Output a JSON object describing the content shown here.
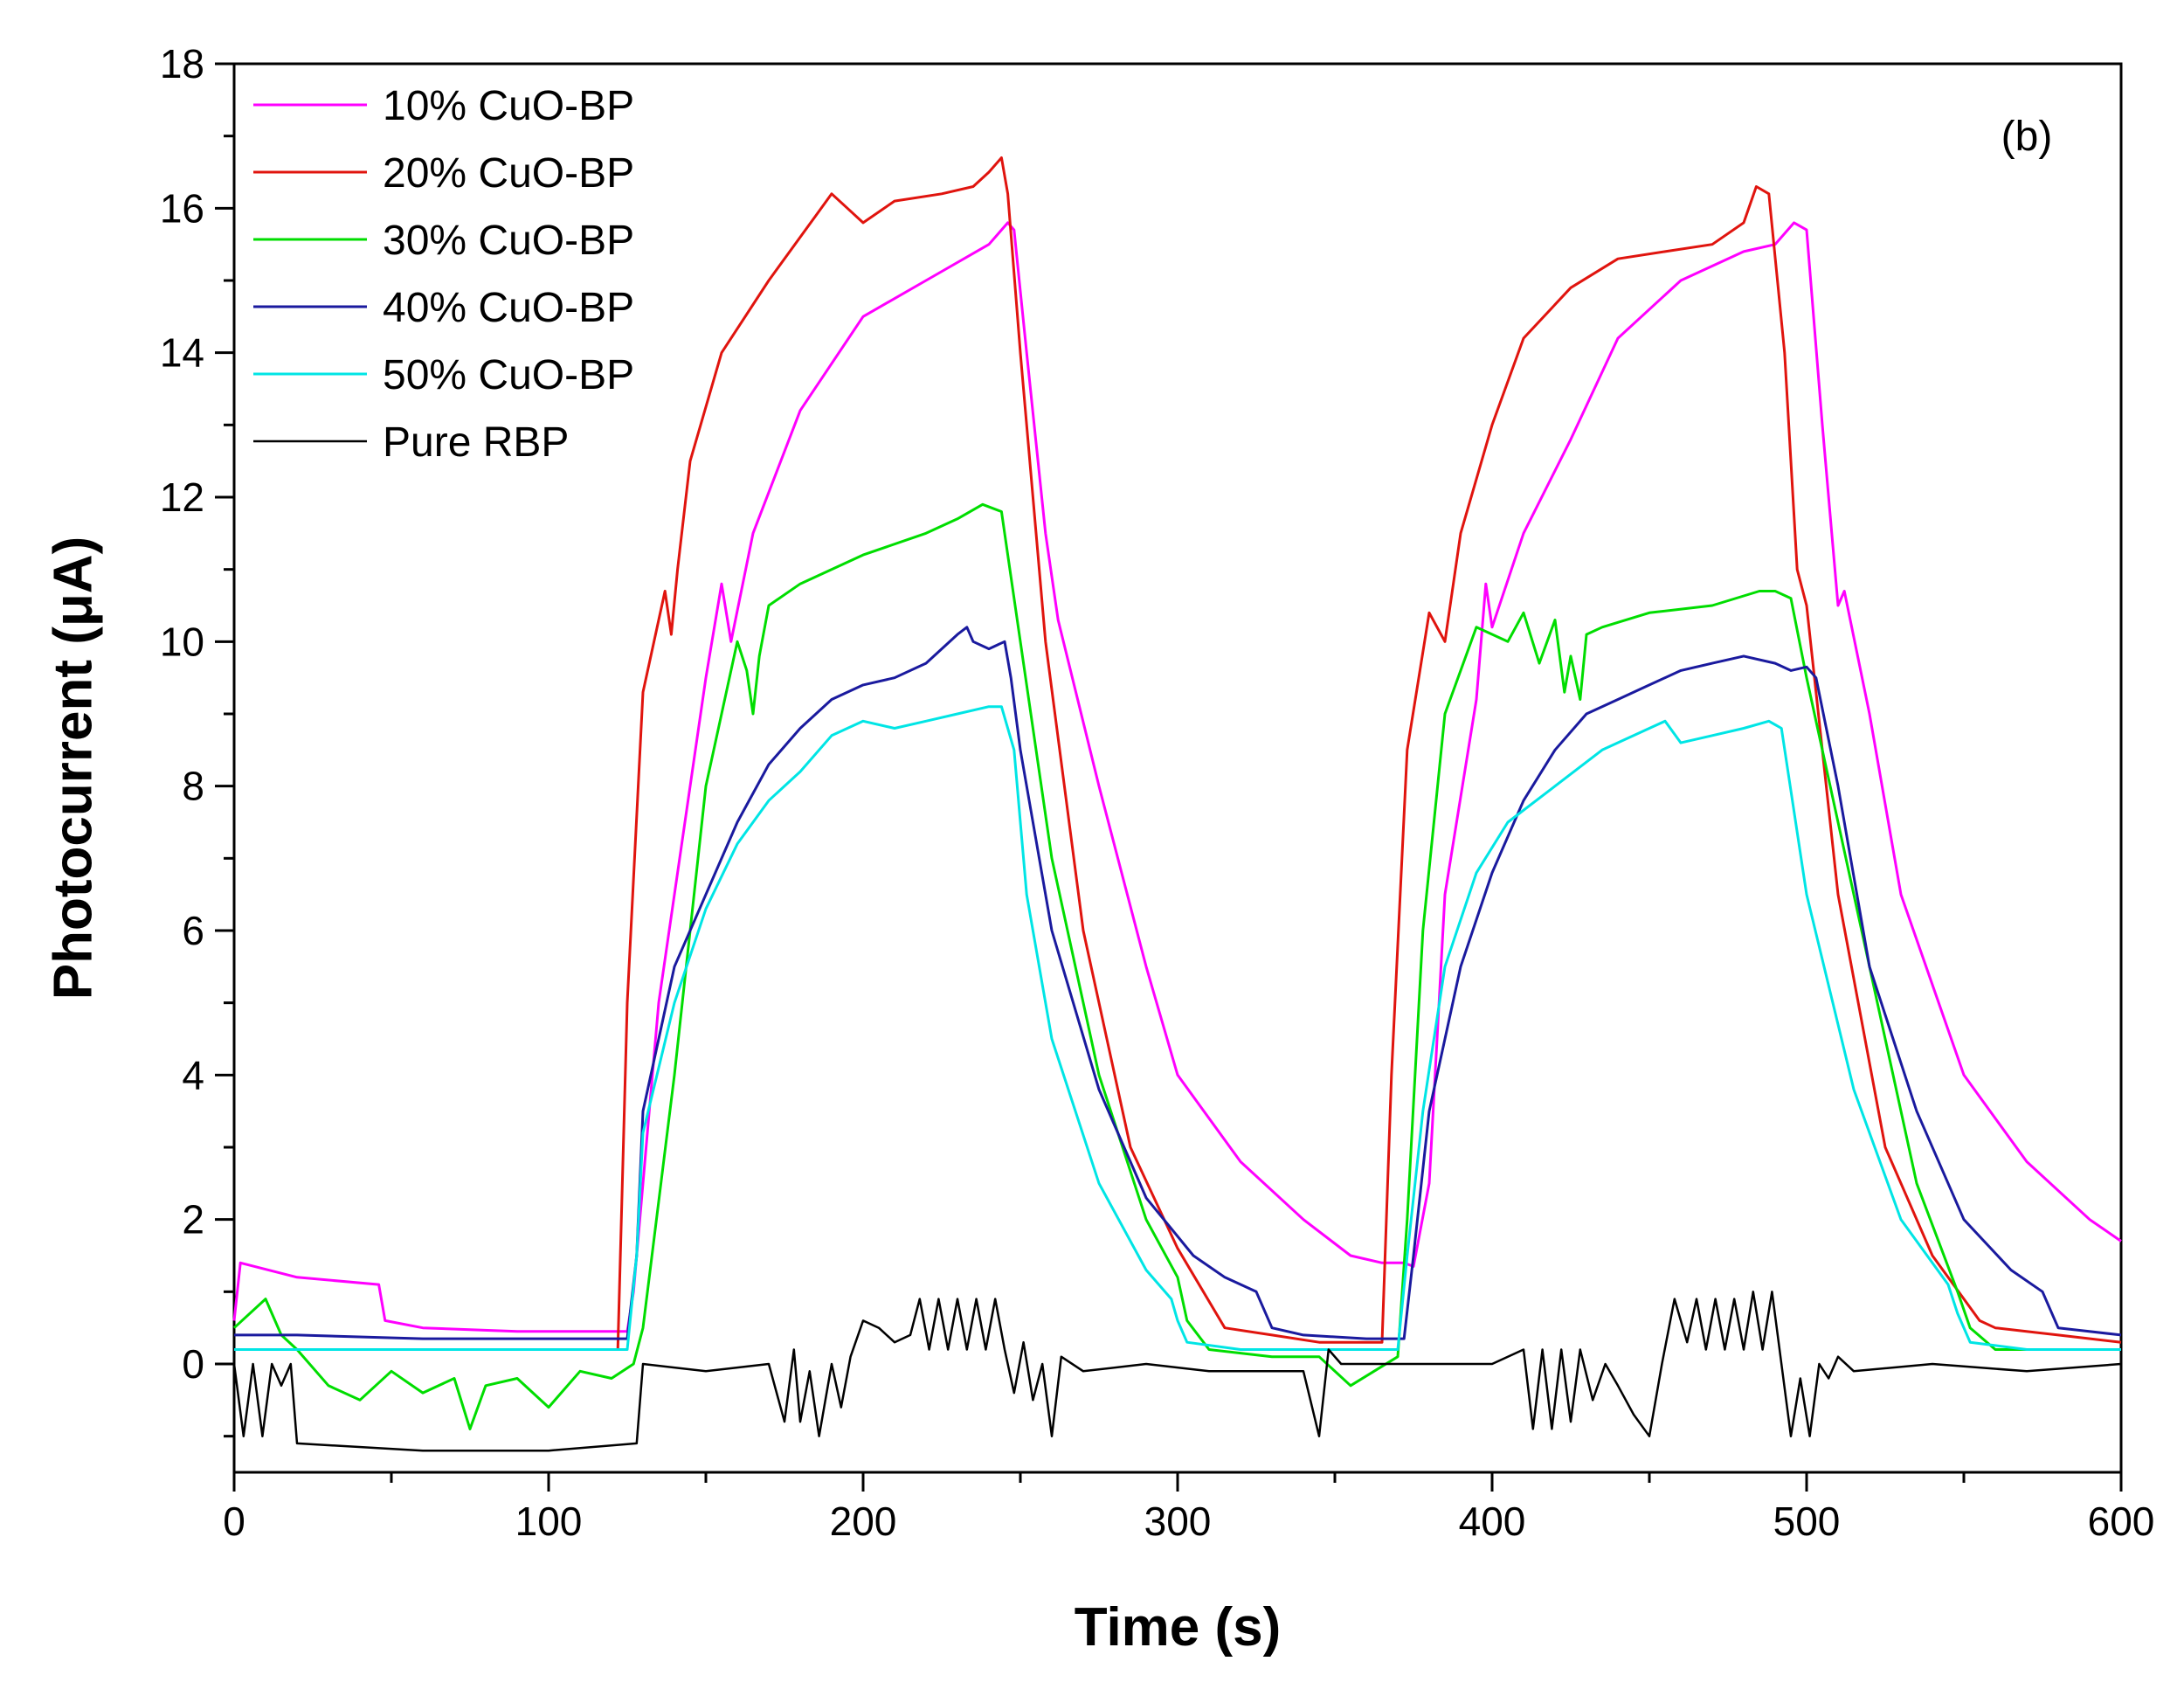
{
  "chart_data": {
    "type": "line",
    "title": "",
    "annotation": "(b)",
    "xlabel": "Time (s)",
    "ylabel": "Photocurrent (μA)",
    "xlim": [
      0,
      600
    ],
    "ylim": [
      -1.5,
      18
    ],
    "xticks": [
      0,
      100,
      200,
      300,
      400,
      500,
      600
    ],
    "yticks": [
      0,
      2,
      4,
      6,
      8,
      10,
      12,
      14,
      16,
      18
    ],
    "grid": false,
    "legend_position": "top-left",
    "series": [
      {
        "name": "10% CuO-BP",
        "color": "#ff00ff",
        "x": [
          0,
          2,
          20,
          46,
          48,
          60,
          90,
          125,
          127,
          135,
          150,
          155,
          158,
          165,
          180,
          200,
          220,
          240,
          246,
          248,
          252,
          258,
          262,
          275,
          290,
          300,
          320,
          340,
          355,
          365,
          372,
          375,
          380,
          385,
          395,
          398,
          400,
          410,
          425,
          440,
          460,
          480,
          490,
          496,
          500,
          505,
          510,
          512,
          520,
          530,
          550,
          570,
          590,
          600
        ],
        "y": [
          0.6,
          1.4,
          1.2,
          1.1,
          0.6,
          0.5,
          0.45,
          0.45,
          1.0,
          5.0,
          9.5,
          10.8,
          10.0,
          11.5,
          13.2,
          14.5,
          15.0,
          15.5,
          15.8,
          15.7,
          14.0,
          11.5,
          10.3,
          8.0,
          5.5,
          4.0,
          2.8,
          2.0,
          1.5,
          1.4,
          1.4,
          1.35,
          2.5,
          6.5,
          9.2,
          10.8,
          10.2,
          11.5,
          12.8,
          14.2,
          15.0,
          15.4,
          15.5,
          15.8,
          15.7,
          13.0,
          10.5,
          10.7,
          9.0,
          6.5,
          4.0,
          2.8,
          2.0,
          1.7
        ]
      },
      {
        "name": "20% CuO-BP",
        "color": "#e0140e",
        "x": [
          0,
          20,
          60,
          100,
          122,
          125,
          130,
          137,
          139,
          141,
          145,
          155,
          170,
          185,
          190,
          195,
          200,
          210,
          225,
          235,
          240,
          244,
          246,
          250,
          258,
          270,
          285,
          300,
          315,
          330,
          345,
          360,
          365,
          368,
          373,
          380,
          385,
          390,
          400,
          410,
          425,
          440,
          455,
          470,
          480,
          484,
          488,
          493,
          497,
          500,
          510,
          525,
          540,
          555,
          560,
          580,
          600
        ],
        "y": [
          0.2,
          0.2,
          0.2,
          0.2,
          0.2,
          5.0,
          9.3,
          10.7,
          10.1,
          11.0,
          12.5,
          14.0,
          15.0,
          15.9,
          16.2,
          16.0,
          15.8,
          16.1,
          16.2,
          16.3,
          16.5,
          16.7,
          16.2,
          14.0,
          10.0,
          6.0,
          3.0,
          1.6,
          0.5,
          0.4,
          0.3,
          0.3,
          0.3,
          4.0,
          8.5,
          10.4,
          10.0,
          11.5,
          13.0,
          14.2,
          14.9,
          15.3,
          15.4,
          15.5,
          15.8,
          16.3,
          16.2,
          14.0,
          11.0,
          10.5,
          6.5,
          3.0,
          1.5,
          0.6,
          0.5,
          0.4,
          0.3
        ]
      },
      {
        "name": "30% CuO-BP",
        "color": "#00dd00",
        "x": [
          0,
          10,
          15,
          20,
          30,
          40,
          50,
          60,
          70,
          75,
          80,
          90,
          100,
          110,
          120,
          127,
          130,
          140,
          150,
          160,
          163,
          165,
          167,
          170,
          180,
          200,
          220,
          230,
          238,
          244,
          246,
          250,
          260,
          275,
          290,
          300,
          303,
          310,
          330,
          345,
          355,
          370,
          373,
          378,
          385,
          395,
          405,
          410,
          415,
          420,
          423,
          425,
          428,
          430,
          435,
          450,
          470,
          485,
          490,
          495,
          500,
          520,
          535,
          548,
          552,
          560,
          580,
          600
        ],
        "y": [
          0.5,
          0.9,
          0.4,
          0.2,
          -0.3,
          -0.5,
          -0.1,
          -0.4,
          -0.2,
          -0.9,
          -0.3,
          -0.2,
          -0.6,
          -0.1,
          -0.2,
          0.0,
          0.5,
          4.0,
          8.0,
          10.0,
          9.6,
          9.0,
          9.8,
          10.5,
          10.8,
          11.2,
          11.5,
          11.7,
          11.9,
          11.8,
          11.2,
          10.0,
          7.0,
          4.0,
          2.0,
          1.2,
          0.6,
          0.2,
          0.1,
          0.1,
          -0.3,
          0.1,
          2.0,
          6.0,
          9.0,
          10.2,
          10.0,
          10.4,
          9.7,
          10.3,
          9.3,
          9.8,
          9.2,
          10.1,
          10.2,
          10.4,
          10.5,
          10.7,
          10.7,
          10.6,
          9.5,
          5.5,
          2.5,
          1.0,
          0.5,
          0.2,
          0.2,
          0.2
        ]
      },
      {
        "name": "40% CuO-BP",
        "color": "#1a1a9e",
        "x": [
          0,
          20,
          60,
          100,
          125,
          128,
          130,
          140,
          150,
          160,
          170,
          180,
          190,
          200,
          210,
          220,
          230,
          233,
          235,
          240,
          245,
          247,
          250,
          260,
          275,
          290,
          305,
          315,
          325,
          330,
          340,
          360,
          372,
          375,
          380,
          390,
          400,
          410,
          420,
          430,
          440,
          450,
          460,
          470,
          480,
          490,
          495,
          500,
          503,
          510,
          520,
          535,
          550,
          565,
          575,
          580,
          600
        ],
        "y": [
          0.4,
          0.4,
          0.35,
          0.35,
          0.35,
          1.5,
          3.5,
          5.5,
          6.5,
          7.5,
          8.3,
          8.8,
          9.2,
          9.4,
          9.5,
          9.7,
          10.1,
          10.2,
          10.0,
          9.9,
          10.0,
          9.5,
          8.5,
          6.0,
          3.8,
          2.3,
          1.5,
          1.2,
          1.0,
          0.5,
          0.4,
          0.35,
          0.35,
          1.5,
          3.5,
          5.5,
          6.8,
          7.8,
          8.5,
          9.0,
          9.2,
          9.4,
          9.6,
          9.7,
          9.8,
          9.7,
          9.6,
          9.65,
          9.5,
          8.0,
          5.5,
          3.5,
          2.0,
          1.3,
          1.0,
          0.5,
          0.4
        ]
      },
      {
        "name": "50% CuO-BP",
        "color": "#00e5e5",
        "x": [
          0,
          20,
          60,
          100,
          125,
          128,
          130,
          140,
          150,
          160,
          170,
          180,
          190,
          200,
          210,
          220,
          230,
          240,
          244,
          248,
          252,
          260,
          275,
          290,
          298,
          300,
          303,
          320,
          340,
          360,
          370,
          373,
          378,
          385,
          395,
          405,
          420,
          435,
          450,
          455,
          460,
          470,
          480,
          488,
          492,
          500,
          515,
          530,
          545,
          548,
          552,
          570,
          600
        ],
        "y": [
          0.2,
          0.2,
          0.2,
          0.2,
          0.2,
          1.5,
          3.2,
          5.0,
          6.3,
          7.2,
          7.8,
          8.2,
          8.7,
          8.9,
          8.8,
          8.9,
          9.0,
          9.1,
          9.1,
          8.5,
          6.5,
          4.5,
          2.5,
          1.3,
          0.9,
          0.6,
          0.3,
          0.2,
          0.2,
          0.2,
          0.2,
          1.5,
          3.5,
          5.5,
          6.8,
          7.5,
          8.0,
          8.5,
          8.8,
          8.9,
          8.6,
          8.7,
          8.8,
          8.9,
          8.8,
          6.5,
          3.8,
          2.0,
          1.1,
          0.7,
          0.3,
          0.2,
          0.2
        ]
      },
      {
        "name": "Pure RBP",
        "color": "#000000",
        "x": [
          0,
          3,
          6,
          9,
          12,
          15,
          18,
          20,
          60,
          100,
          128,
          130,
          150,
          170,
          175,
          178,
          180,
          183,
          186,
          190,
          193,
          196,
          200,
          205,
          210,
          215,
          218,
          221,
          224,
          227,
          230,
          233,
          236,
          239,
          242,
          245,
          248,
          251,
          254,
          257,
          260,
          263,
          270,
          290,
          310,
          340,
          345,
          348,
          352,
          360,
          400,
          410,
          413,
          416,
          419,
          422,
          425,
          428,
          432,
          436,
          440,
          445,
          450,
          454,
          458,
          462,
          465,
          468,
          471,
          474,
          477,
          480,
          483,
          486,
          489,
          492,
          495,
          498,
          501,
          504,
          507,
          510,
          515,
          540,
          570,
          600
        ],
        "y": [
          0.0,
          -1.0,
          0.0,
          -1.0,
          0.0,
          -0.3,
          0.0,
          -1.1,
          -1.2,
          -1.2,
          -1.1,
          0.0,
          -0.1,
          0.0,
          -0.8,
          0.2,
          -0.8,
          -0.1,
          -1.0,
          0.0,
          -0.6,
          0.1,
          0.6,
          0.5,
          0.3,
          0.4,
          0.9,
          0.2,
          0.9,
          0.2,
          0.9,
          0.2,
          0.9,
          0.2,
          0.9,
          0.2,
          -0.4,
          0.3,
          -0.5,
          0.0,
          -1.0,
          0.1,
          -0.1,
          0.0,
          -0.1,
          -0.1,
          -1.0,
          0.2,
          0.0,
          0.0,
          0.0,
          0.2,
          -0.9,
          0.2,
          -0.9,
          0.2,
          -0.8,
          0.2,
          -0.5,
          0.0,
          -0.3,
          -0.7,
          -1.0,
          0.0,
          0.9,
          0.3,
          0.9,
          0.2,
          0.9,
          0.2,
          0.9,
          0.2,
          1.0,
          0.2,
          1.0,
          0.0,
          -1.0,
          -0.2,
          -1.0,
          0.0,
          -0.2,
          0.1,
          -0.1,
          0.0,
          -0.1,
          0.0
        ]
      }
    ]
  }
}
